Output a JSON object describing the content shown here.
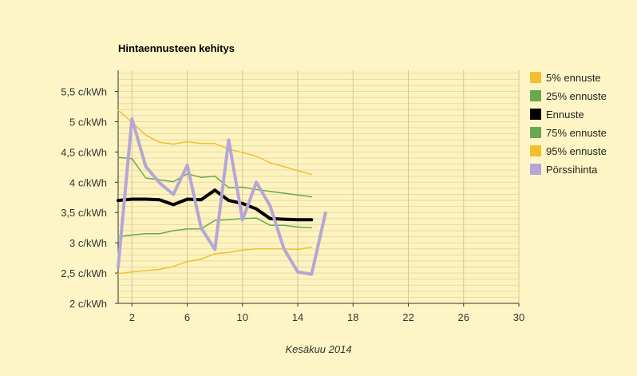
{
  "chart_data": {
    "type": "line",
    "title": "Hintaennusteen kehitys",
    "xlabel": "Kesäkuu 2014",
    "ylabel": "",
    "xlim": [
      1,
      30
    ],
    "ylim": [
      2,
      5.85
    ],
    "x_ticks": [
      2,
      6,
      10,
      14,
      18,
      22,
      26,
      30
    ],
    "x_tick_labels": [
      "2",
      "6",
      "10",
      "14",
      "18",
      "22",
      "26",
      "30"
    ],
    "y_ticks": [
      2,
      2.5,
      3,
      3.5,
      4,
      4.5,
      5,
      5.5
    ],
    "y_tick_labels": [
      "2 c/kWh",
      "2,5 c/kWh",
      "3 c/kWh",
      "3,5 c/kWh",
      "4 c/kWh",
      "4,5 c/kWh",
      "5 c/kWh",
      "5,5 c/kWh"
    ],
    "grid": true,
    "legend_position": "right",
    "series": [
      {
        "name": "5% ennuste",
        "color": "#f0c030",
        "width": 1.5,
        "x": [
          1,
          2,
          3,
          4,
          5,
          6,
          7,
          8,
          9,
          10,
          11,
          12,
          13,
          14,
          15
        ],
        "y": [
          2.49,
          2.52,
          2.54,
          2.56,
          2.61,
          2.69,
          2.73,
          2.82,
          2.84,
          2.88,
          2.9,
          2.9,
          2.9,
          2.89,
          2.93
        ]
      },
      {
        "name": "25% ennuste",
        "color": "#6aa84f",
        "width": 1.5,
        "x": [
          1,
          2,
          3,
          4,
          5,
          6,
          7,
          8,
          9,
          10,
          11,
          12,
          13,
          14,
          15
        ],
        "y": [
          3.1,
          3.13,
          3.15,
          3.15,
          3.2,
          3.23,
          3.23,
          3.37,
          3.38,
          3.4,
          3.41,
          3.29,
          3.29,
          3.26,
          3.25
        ]
      },
      {
        "name": "Ennuste",
        "color": "#000000",
        "width": 4,
        "x": [
          1,
          2,
          3,
          4,
          5,
          6,
          7,
          8,
          9,
          10,
          11,
          12,
          13,
          14,
          15
        ],
        "y": [
          3.7,
          3.72,
          3.72,
          3.71,
          3.63,
          3.72,
          3.71,
          3.87,
          3.7,
          3.65,
          3.56,
          3.4,
          3.39,
          3.38,
          3.38
        ]
      },
      {
        "name": "75% ennuste",
        "color": "#6aa84f",
        "width": 1.5,
        "x": [
          1,
          2,
          3,
          4,
          5,
          6,
          7,
          8,
          9,
          10,
          11,
          12,
          13,
          14,
          15
        ],
        "y": [
          4.41,
          4.39,
          4.07,
          4.04,
          4.01,
          4.14,
          4.08,
          4.1,
          3.91,
          3.92,
          3.88,
          3.85,
          3.82,
          3.79,
          3.76
        ]
      },
      {
        "name": "95% ennuste",
        "color": "#f0c030",
        "width": 1.5,
        "x": [
          1,
          2,
          3,
          4,
          5,
          6,
          7,
          8,
          9,
          10,
          11,
          12,
          13,
          14,
          15
        ],
        "y": [
          5.19,
          4.99,
          4.78,
          4.66,
          4.63,
          4.67,
          4.64,
          4.64,
          4.55,
          4.49,
          4.43,
          4.32,
          4.26,
          4.19,
          4.13
        ]
      },
      {
        "name": "Pörssihinta",
        "color": "#b4a7d6",
        "width": 4,
        "x": [
          1,
          2,
          3,
          4,
          5,
          6,
          7,
          8,
          9,
          10,
          11,
          12,
          13,
          14,
          15,
          16
        ],
        "y": [
          2.6,
          5.05,
          4.26,
          3.99,
          3.8,
          4.28,
          3.25,
          2.89,
          4.7,
          3.38,
          4.0,
          3.61,
          2.9,
          2.52,
          2.48,
          3.49
        ]
      }
    ]
  }
}
